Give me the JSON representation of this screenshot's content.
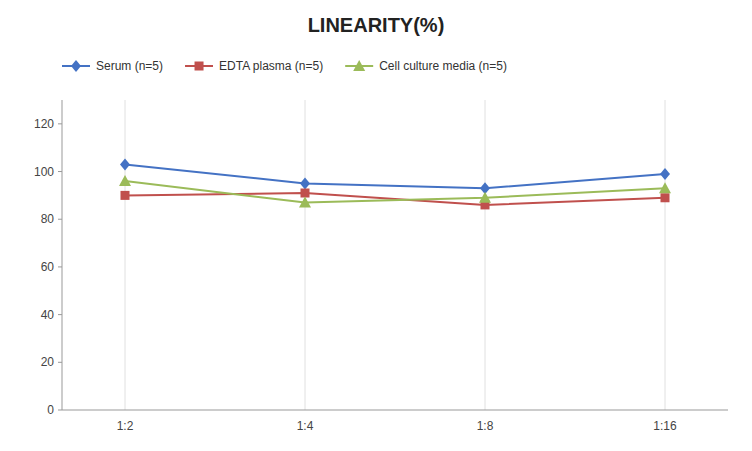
{
  "chart_data": {
    "type": "line",
    "title": "LINEARITY(%)",
    "categories": [
      "1:2",
      "1:4",
      "1:8",
      "1:16"
    ],
    "series": [
      {
        "name": "Serum (n=5)",
        "color": "#4472C4",
        "marker": "diamond",
        "values": [
          103,
          95,
          93,
          99
        ]
      },
      {
        "name": "EDTA plasma (n=5)",
        "color": "#C0504D",
        "marker": "square",
        "values": [
          90,
          91,
          86,
          89
        ]
      },
      {
        "name": "Cell culture media (n=5)",
        "color": "#9BBB59",
        "marker": "triangle",
        "values": [
          96,
          87,
          89,
          93
        ]
      }
    ],
    "ylim": [
      0,
      130
    ],
    "yticks": [
      0,
      20,
      40,
      60,
      80,
      100,
      120
    ],
    "grid": true,
    "legend": "top"
  }
}
